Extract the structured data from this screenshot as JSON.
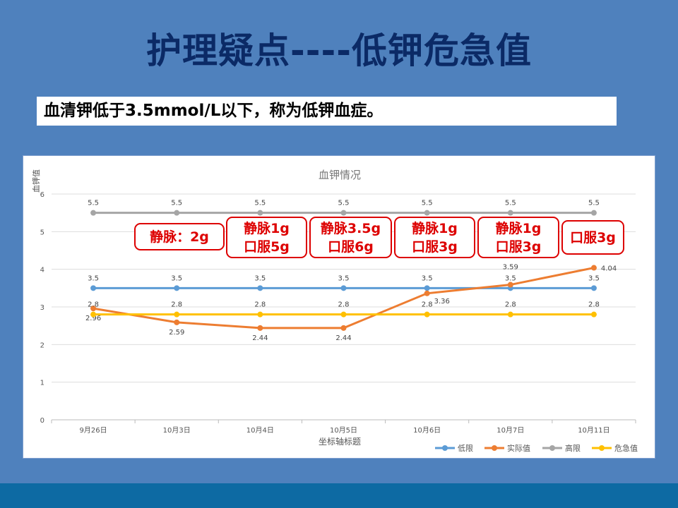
{
  "slide": {
    "title": "护理疑点----低钾危急值",
    "subtitle": "血清钾低于3.5mmol/L以下，称为低钾血症。"
  },
  "annotations": [
    "静脉：2g",
    "静脉1g 口服5g",
    "静脉3.5g 口服6g",
    "静脉1g 口服3g",
    "静脉1g 口服3g",
    "口服3g"
  ],
  "colors": {
    "低限": "#5b9bd5",
    "实际值": "#ed7d31",
    "高限": "#a5a5a5",
    "危急值": "#ffc000"
  },
  "chart_data": {
    "type": "line",
    "title": "血钾情况",
    "xlabel": "坐标轴标题",
    "ylabel": "血钾值",
    "ylim": [
      0,
      6
    ],
    "yticks": [
      0,
      1,
      2,
      3,
      4,
      5,
      6
    ],
    "grid": true,
    "legend": "bottom-right",
    "categories": [
      "9月26日",
      "10月3日",
      "10月4日",
      "10月5日",
      "10月6日",
      "10月7日",
      "10月11日"
    ],
    "series": [
      {
        "name": "低限",
        "values": [
          3.5,
          3.5,
          3.5,
          3.5,
          3.5,
          3.5,
          3.5
        ]
      },
      {
        "name": "实际值",
        "values": [
          2.96,
          2.59,
          2.44,
          2.44,
          3.36,
          3.59,
          4.04
        ]
      },
      {
        "name": "高限",
        "values": [
          5.5,
          5.5,
          5.5,
          5.5,
          5.5,
          5.5,
          5.5
        ]
      },
      {
        "name": "危急值",
        "values": [
          2.8,
          2.8,
          2.8,
          2.8,
          2.8,
          2.8,
          2.8
        ]
      }
    ]
  }
}
